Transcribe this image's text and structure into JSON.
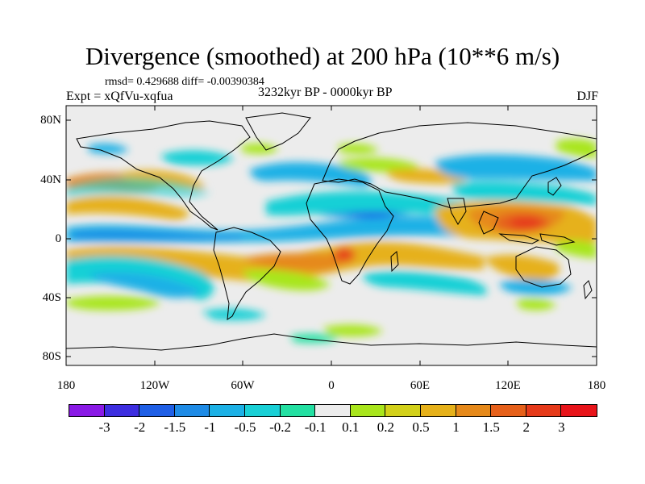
{
  "title": "Divergence (smoothed) at 200 hPa (10**6 m/s)",
  "stats": "rmsd= 0.429688 diff= -0.00390384",
  "experiment": "Expt = xQfVu-xqfua",
  "period": "3232kyr BP - 0000kyr BP",
  "season": "DJF",
  "axes": {
    "y_ticks": [
      "80N",
      "40N",
      "0",
      "40S",
      "80S"
    ],
    "x_ticks": [
      "180",
      "120W",
      "60W",
      "0",
      "60E",
      "120E",
      "180"
    ]
  },
  "colorbar": {
    "labels": [
      "-3",
      "-2",
      "-1.5",
      "-1",
      "-0.5",
      "-0.2",
      "-0.1",
      "0.1",
      "0.2",
      "0.5",
      "1",
      "1.5",
      "2",
      "3"
    ],
    "colors": [
      "#8a1ae6",
      "#3d2ee0",
      "#1f5fe6",
      "#1e8be6",
      "#1cb1e6",
      "#19d0d6",
      "#23e0a2",
      "#ececec",
      "#a9e61c",
      "#d3d11a",
      "#e6b11a",
      "#e6891a",
      "#e6601a",
      "#e63a1a",
      "#e8141a"
    ]
  }
}
